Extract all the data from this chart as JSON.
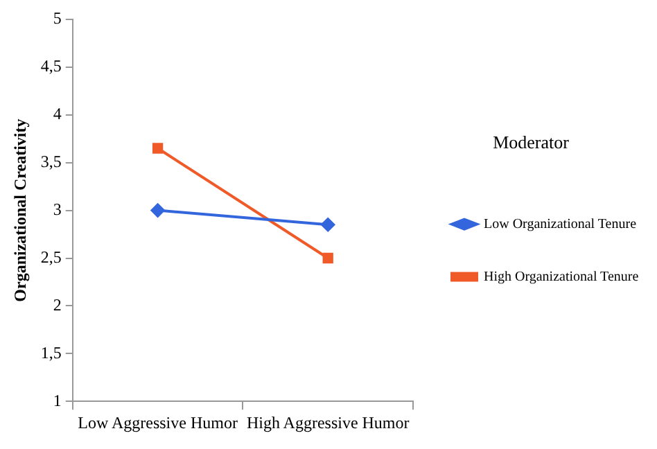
{
  "chart_data": {
    "type": "line",
    "ylabel": "Organizational Creativity",
    "legend_title": "Moderator",
    "categories": [
      "Low Aggressive Humor",
      "High Aggressive Humor"
    ],
    "series": [
      {
        "name": "Low Organizational Tenure",
        "color": "#3366dd",
        "marker": "diamond",
        "values": [
          3.0,
          2.85
        ]
      },
      {
        "name": "High Organizational Tenure",
        "color": "#f05a28",
        "marker": "square",
        "values": [
          3.65,
          2.5
        ]
      }
    ],
    "ylim": [
      1,
      5
    ],
    "yticks": [
      1,
      {
        "value": 1.5,
        "label": "1,5"
      },
      2,
      {
        "value": 2.5,
        "label": "2,5"
      },
      3,
      {
        "value": 3.5,
        "label": "3,5"
      },
      4,
      {
        "value": 4.5,
        "label": "4,5"
      },
      5
    ],
    "grid": false,
    "legend": "right"
  }
}
